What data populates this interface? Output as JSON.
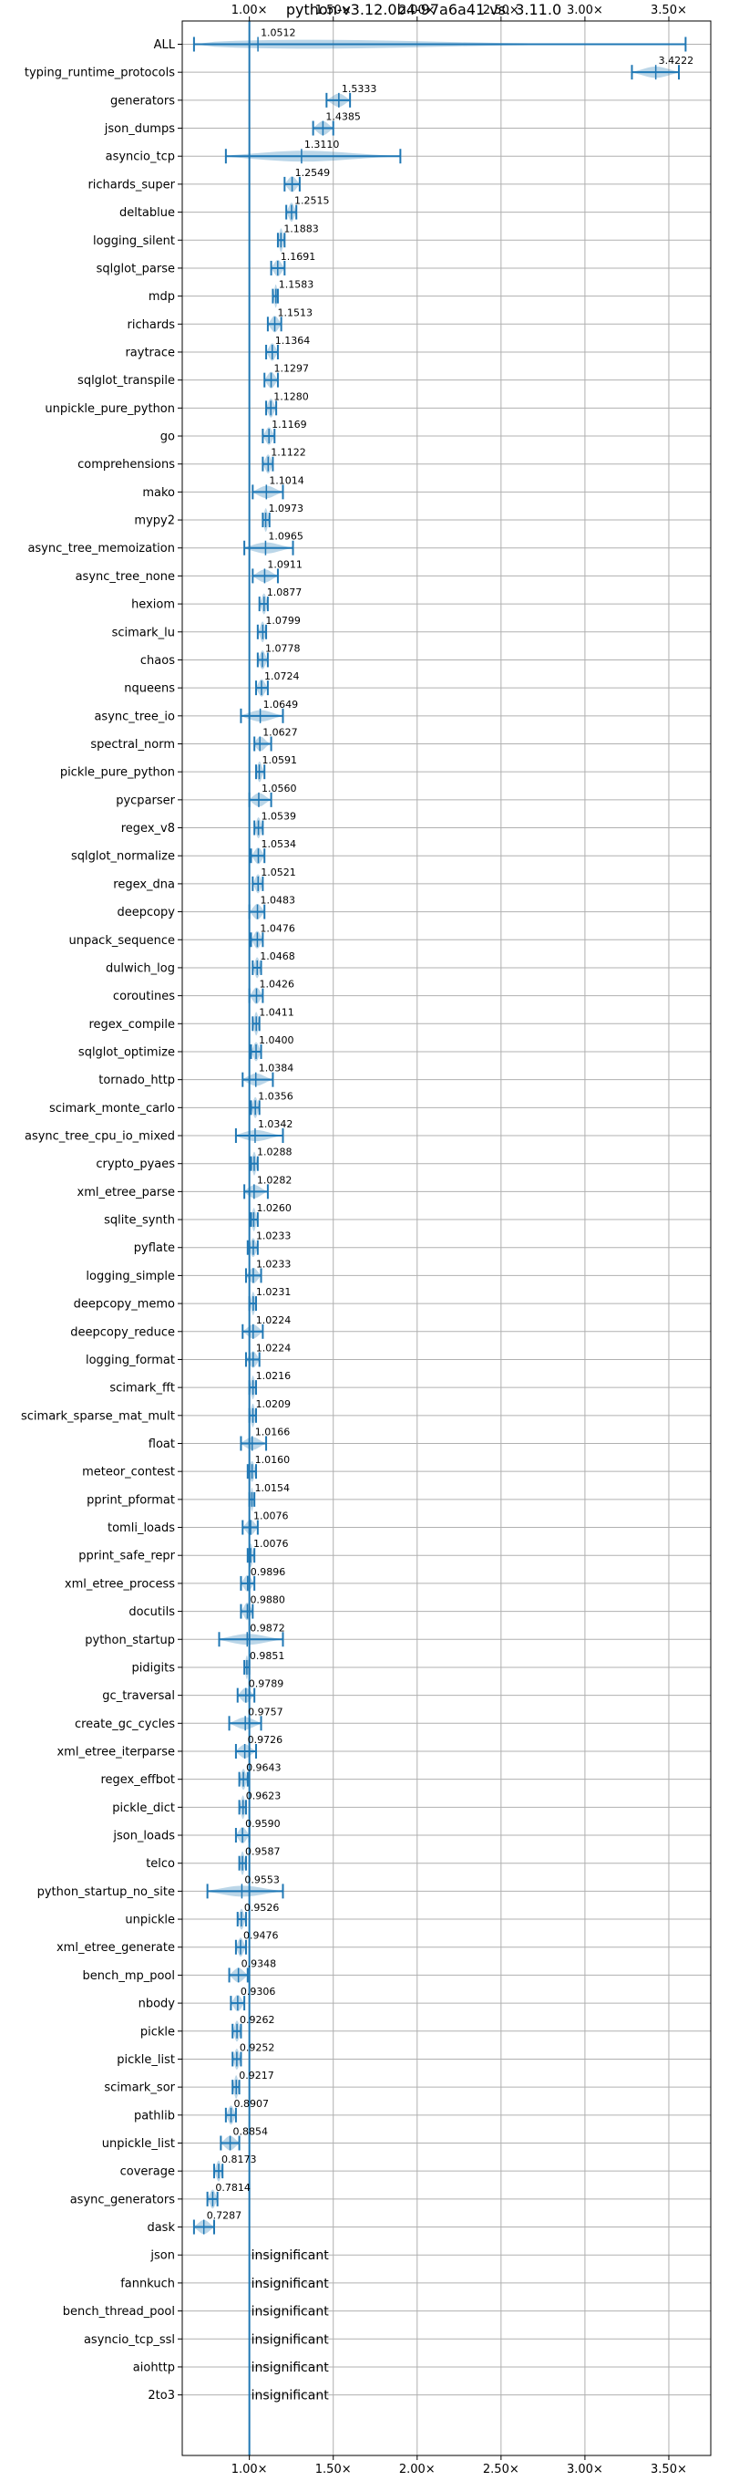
{
  "chart_data": {
    "type": "violin",
    "title": "python-v3.12.0b4-97a6a41 vs. 3.11.0",
    "xlim": [
      0.6,
      3.75
    ],
    "xticks": [
      {
        "value": 1.0,
        "label": "1.00×"
      },
      {
        "value": 1.5,
        "label": "1.50×"
      },
      {
        "value": 2.0,
        "label": "2.00×"
      },
      {
        "value": 2.5,
        "label": "2.50×"
      },
      {
        "value": 3.0,
        "label": "3.00×"
      },
      {
        "value": 3.5,
        "label": "3.50×"
      }
    ],
    "reference_line": 1.0,
    "grid": true,
    "insignificant_text": "insignificant",
    "benchmarks": [
      {
        "name": "ALL",
        "value": 1.0512,
        "label": "1.0512",
        "min": 0.67,
        "max": 3.6
      },
      {
        "name": "typing_runtime_protocols",
        "value": 3.4222,
        "label": "3.4222",
        "min": 3.28,
        "max": 3.56
      },
      {
        "name": "generators",
        "value": 1.5333,
        "label": "1.5333",
        "min": 1.46,
        "max": 1.6
      },
      {
        "name": "json_dumps",
        "value": 1.4385,
        "label": "1.4385",
        "min": 1.38,
        "max": 1.5
      },
      {
        "name": "asyncio_tcp",
        "value": 1.311,
        "label": "1.3110",
        "min": 0.86,
        "max": 1.9
      },
      {
        "name": "richards_super",
        "value": 1.2549,
        "label": "1.2549",
        "min": 1.21,
        "max": 1.3
      },
      {
        "name": "deltablue",
        "value": 1.2515,
        "label": "1.2515",
        "min": 1.22,
        "max": 1.28
      },
      {
        "name": "logging_silent",
        "value": 1.1883,
        "label": "1.1883",
        "min": 1.17,
        "max": 1.21
      },
      {
        "name": "sqlglot_parse",
        "value": 1.1691,
        "label": "1.1691",
        "min": 1.13,
        "max": 1.21
      },
      {
        "name": "mdp",
        "value": 1.1583,
        "label": "1.1583",
        "min": 1.14,
        "max": 1.17
      },
      {
        "name": "richards",
        "value": 1.1513,
        "label": "1.1513",
        "min": 1.11,
        "max": 1.19
      },
      {
        "name": "raytrace",
        "value": 1.1364,
        "label": "1.1364",
        "min": 1.1,
        "max": 1.17
      },
      {
        "name": "sqlglot_transpile",
        "value": 1.1297,
        "label": "1.1297",
        "min": 1.09,
        "max": 1.17
      },
      {
        "name": "unpickle_pure_python",
        "value": 1.128,
        "label": "1.1280",
        "min": 1.1,
        "max": 1.16
      },
      {
        "name": "go",
        "value": 1.1169,
        "label": "1.1169",
        "min": 1.08,
        "max": 1.15
      },
      {
        "name": "comprehensions",
        "value": 1.1122,
        "label": "1.1122",
        "min": 1.08,
        "max": 1.14
      },
      {
        "name": "mako",
        "value": 1.1014,
        "label": "1.1014",
        "min": 1.02,
        "max": 1.2
      },
      {
        "name": "mypy2",
        "value": 1.0973,
        "label": "1.0973",
        "min": 1.08,
        "max": 1.12
      },
      {
        "name": "async_tree_memoization",
        "value": 1.0965,
        "label": "1.0965",
        "min": 0.97,
        "max": 1.26
      },
      {
        "name": "async_tree_none",
        "value": 1.0911,
        "label": "1.0911",
        "min": 1.02,
        "max": 1.17
      },
      {
        "name": "hexiom",
        "value": 1.0877,
        "label": "1.0877",
        "min": 1.06,
        "max": 1.11
      },
      {
        "name": "scimark_lu",
        "value": 1.0799,
        "label": "1.0799",
        "min": 1.05,
        "max": 1.1
      },
      {
        "name": "chaos",
        "value": 1.0778,
        "label": "1.0778",
        "min": 1.05,
        "max": 1.11
      },
      {
        "name": "nqueens",
        "value": 1.0724,
        "label": "1.0724",
        "min": 1.04,
        "max": 1.11
      },
      {
        "name": "async_tree_io",
        "value": 1.0649,
        "label": "1.0649",
        "min": 0.95,
        "max": 1.2
      },
      {
        "name": "spectral_norm",
        "value": 1.0627,
        "label": "1.0627",
        "min": 1.03,
        "max": 1.13
      },
      {
        "name": "pickle_pure_python",
        "value": 1.0591,
        "label": "1.0591",
        "min": 1.04,
        "max": 1.09
      },
      {
        "name": "pycparser",
        "value": 1.056,
        "label": "1.0560",
        "min": 1.0,
        "max": 1.13
      },
      {
        "name": "regex_v8",
        "value": 1.0539,
        "label": "1.0539",
        "min": 1.03,
        "max": 1.08
      },
      {
        "name": "sqlglot_normalize",
        "value": 1.0534,
        "label": "1.0534",
        "min": 1.01,
        "max": 1.09
      },
      {
        "name": "regex_dna",
        "value": 1.0521,
        "label": "1.0521",
        "min": 1.02,
        "max": 1.08
      },
      {
        "name": "deepcopy",
        "value": 1.0483,
        "label": "1.0483",
        "min": 1.0,
        "max": 1.09
      },
      {
        "name": "unpack_sequence",
        "value": 1.0476,
        "label": "1.0476",
        "min": 1.01,
        "max": 1.08
      },
      {
        "name": "dulwich_log",
        "value": 1.0468,
        "label": "1.0468",
        "min": 1.02,
        "max": 1.07
      },
      {
        "name": "coroutines",
        "value": 1.0426,
        "label": "1.0426",
        "min": 1.0,
        "max": 1.08
      },
      {
        "name": "regex_compile",
        "value": 1.0411,
        "label": "1.0411",
        "min": 1.02,
        "max": 1.06
      },
      {
        "name": "sqlglot_optimize",
        "value": 1.04,
        "label": "1.0400",
        "min": 1.01,
        "max": 1.07
      },
      {
        "name": "tornado_http",
        "value": 1.0384,
        "label": "1.0384",
        "min": 0.96,
        "max": 1.14
      },
      {
        "name": "scimark_monte_carlo",
        "value": 1.0356,
        "label": "1.0356",
        "min": 1.01,
        "max": 1.06
      },
      {
        "name": "async_tree_cpu_io_mixed",
        "value": 1.0342,
        "label": "1.0342",
        "min": 0.92,
        "max": 1.2
      },
      {
        "name": "crypto_pyaes",
        "value": 1.0288,
        "label": "1.0288",
        "min": 1.01,
        "max": 1.05
      },
      {
        "name": "xml_etree_parse",
        "value": 1.0282,
        "label": "1.0282",
        "min": 0.97,
        "max": 1.11
      },
      {
        "name": "sqlite_synth",
        "value": 1.026,
        "label": "1.0260",
        "min": 1.01,
        "max": 1.05
      },
      {
        "name": "pyflate",
        "value": 1.0233,
        "label": "1.0233",
        "min": 0.99,
        "max": 1.05
      },
      {
        "name": "logging_simple",
        "value": 1.0233,
        "label": "1.0233",
        "min": 0.98,
        "max": 1.07
      },
      {
        "name": "deepcopy_memo",
        "value": 1.0231,
        "label": "1.0231",
        "min": 1.0,
        "max": 1.04
      },
      {
        "name": "deepcopy_reduce",
        "value": 1.0224,
        "label": "1.0224",
        "min": 0.96,
        "max": 1.08
      },
      {
        "name": "logging_format",
        "value": 1.0224,
        "label": "1.0224",
        "min": 0.98,
        "max": 1.06
      },
      {
        "name": "scimark_fft",
        "value": 1.0216,
        "label": "1.0216",
        "min": 1.0,
        "max": 1.04
      },
      {
        "name": "scimark_sparse_mat_mult",
        "value": 1.0209,
        "label": "1.0209",
        "min": 1.0,
        "max": 1.04
      },
      {
        "name": "float",
        "value": 1.0166,
        "label": "1.0166",
        "min": 0.95,
        "max": 1.1
      },
      {
        "name": "meteor_contest",
        "value": 1.016,
        "label": "1.0160",
        "min": 0.99,
        "max": 1.04
      },
      {
        "name": "pprint_pformat",
        "value": 1.0154,
        "label": "1.0154",
        "min": 1.0,
        "max": 1.03
      },
      {
        "name": "tomli_loads",
        "value": 1.0076,
        "label": "1.0076",
        "min": 0.96,
        "max": 1.05
      },
      {
        "name": "pprint_safe_repr",
        "value": 1.0076,
        "label": "1.0076",
        "min": 0.99,
        "max": 1.03
      },
      {
        "name": "xml_etree_process",
        "value": 0.9896,
        "label": "0.9896",
        "min": 0.95,
        "max": 1.03
      },
      {
        "name": "docutils",
        "value": 0.988,
        "label": "0.9880",
        "min": 0.95,
        "max": 1.02
      },
      {
        "name": "python_startup",
        "value": 0.9872,
        "label": "0.9872",
        "min": 0.82,
        "max": 1.2
      },
      {
        "name": "pidigits",
        "value": 0.9851,
        "label": "0.9851",
        "min": 0.97,
        "max": 1.0
      },
      {
        "name": "gc_traversal",
        "value": 0.9789,
        "label": "0.9789",
        "min": 0.93,
        "max": 1.03
      },
      {
        "name": "create_gc_cycles",
        "value": 0.9757,
        "label": "0.9757",
        "min": 0.88,
        "max": 1.07
      },
      {
        "name": "xml_etree_iterparse",
        "value": 0.9726,
        "label": "0.9726",
        "min": 0.92,
        "max": 1.04
      },
      {
        "name": "regex_effbot",
        "value": 0.9643,
        "label": "0.9643",
        "min": 0.94,
        "max": 0.99
      },
      {
        "name": "pickle_dict",
        "value": 0.9623,
        "label": "0.9623",
        "min": 0.94,
        "max": 0.98
      },
      {
        "name": "json_loads",
        "value": 0.959,
        "label": "0.9590",
        "min": 0.92,
        "max": 1.0
      },
      {
        "name": "telco",
        "value": 0.9587,
        "label": "0.9587",
        "min": 0.94,
        "max": 0.98
      },
      {
        "name": "python_startup_no_site",
        "value": 0.9553,
        "label": "0.9553",
        "min": 0.75,
        "max": 1.2
      },
      {
        "name": "unpickle",
        "value": 0.9526,
        "label": "0.9526",
        "min": 0.93,
        "max": 0.98
      },
      {
        "name": "xml_etree_generate",
        "value": 0.9476,
        "label": "0.9476",
        "min": 0.92,
        "max": 0.98
      },
      {
        "name": "bench_mp_pool",
        "value": 0.9348,
        "label": "0.9348",
        "min": 0.88,
        "max": 0.99
      },
      {
        "name": "nbody",
        "value": 0.9306,
        "label": "0.9306",
        "min": 0.89,
        "max": 0.97
      },
      {
        "name": "pickle",
        "value": 0.9262,
        "label": "0.9262",
        "min": 0.9,
        "max": 0.95
      },
      {
        "name": "pickle_list",
        "value": 0.9252,
        "label": "0.9252",
        "min": 0.9,
        "max": 0.95
      },
      {
        "name": "scimark_sor",
        "value": 0.9217,
        "label": "0.9217",
        "min": 0.9,
        "max": 0.94
      },
      {
        "name": "pathlib",
        "value": 0.8907,
        "label": "0.8907",
        "min": 0.86,
        "max": 0.92
      },
      {
        "name": "unpickle_list",
        "value": 0.8854,
        "label": "0.8854",
        "min": 0.83,
        "max": 0.94
      },
      {
        "name": "coverage",
        "value": 0.8173,
        "label": "0.8173",
        "min": 0.79,
        "max": 0.84
      },
      {
        "name": "async_generators",
        "value": 0.7814,
        "label": "0.7814",
        "min": 0.75,
        "max": 0.81
      },
      {
        "name": "dask",
        "value": 0.7287,
        "label": "0.7287",
        "min": 0.67,
        "max": 0.79
      },
      {
        "name": "json",
        "insignificant": true
      },
      {
        "name": "fannkuch",
        "insignificant": true
      },
      {
        "name": "bench_thread_pool",
        "insignificant": true
      },
      {
        "name": "asyncio_tcp_ssl",
        "insignificant": true
      },
      {
        "name": "aiohttp",
        "insignificant": true
      },
      {
        "name": "2to3",
        "insignificant": true
      }
    ]
  }
}
